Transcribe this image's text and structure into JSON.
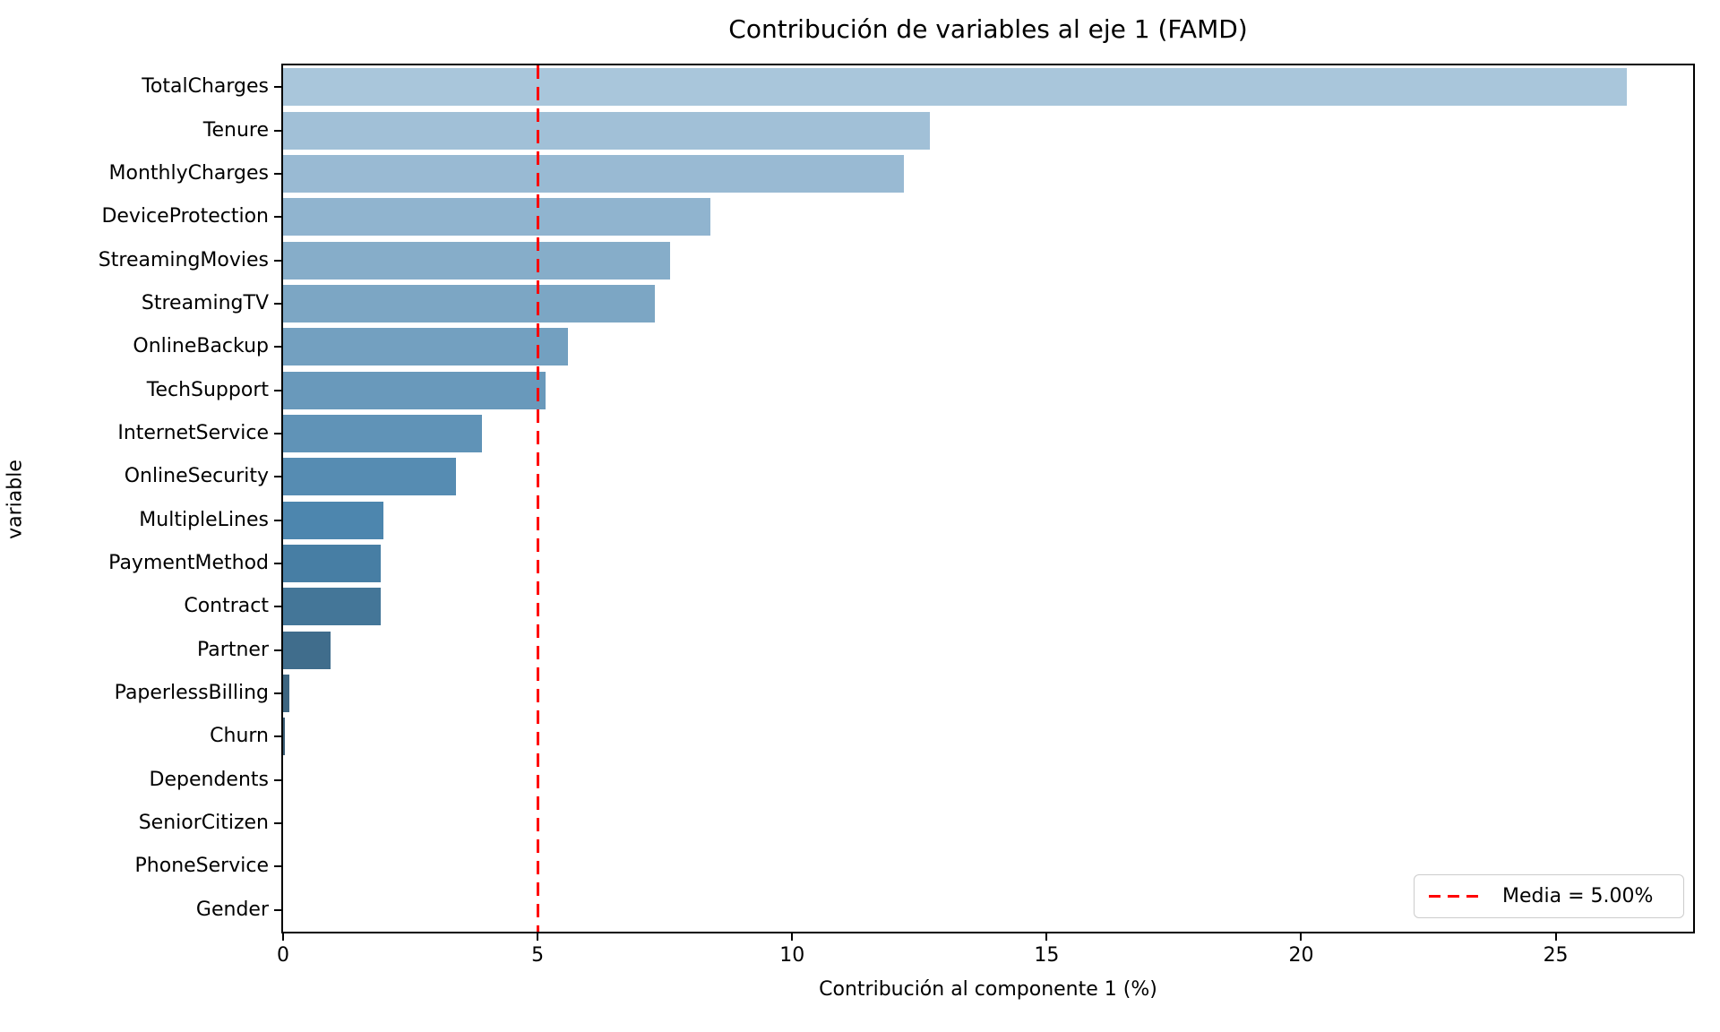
{
  "chart_data": {
    "type": "bar",
    "orientation": "horizontal",
    "title": "Contribución de variables al eje 1 (FAMD)",
    "xlabel": "Contribución al componente 1 (%)",
    "ylabel": "variable",
    "xlim": [
      0,
      27.7
    ],
    "x_ticks": [
      0,
      5,
      10,
      15,
      20,
      25
    ],
    "grid": false,
    "categories": [
      "TotalCharges",
      "Tenure",
      "MonthlyCharges",
      "DeviceProtection",
      "StreamingMovies",
      "StreamingTV",
      "OnlineBackup",
      "TechSupport",
      "InternetService",
      "OnlineSecurity",
      "MultipleLines",
      "PaymentMethod",
      "Contract",
      "Partner",
      "PaperlessBilling",
      "Churn",
      "Dependents",
      "SeniorCitizen",
      "PhoneService",
      "Gender"
    ],
    "values": [
      26.4,
      12.7,
      12.2,
      8.4,
      7.6,
      7.3,
      5.6,
      5.15,
      3.9,
      3.4,
      1.97,
      1.92,
      1.92,
      0.93,
      0.12,
      0.04,
      0,
      0,
      0,
      0
    ],
    "bar_colors": [
      "#a9c6db",
      "#a1c0d7",
      "#99bad3",
      "#90b4cf",
      "#86adc9",
      "#7ca6c4",
      "#73a0c0",
      "#6999bb",
      "#6093b7",
      "#568cb2",
      "#4d86ae",
      "#477ea4",
      "#447698",
      "#406d8c",
      "#3d6580",
      "#3a5d75",
      "#385871",
      "#37546c",
      "#355068",
      "#344c63"
    ],
    "mean_line": {
      "value": 5.0,
      "color": "#ff0000",
      "style": "dashed",
      "label": "Media = 5.00%"
    },
    "legend": {
      "position": "lower right"
    },
    "colors": {
      "spine": "#000000",
      "background": "#ffffff",
      "text": "#000000",
      "legend_border": "#cccccc"
    }
  }
}
